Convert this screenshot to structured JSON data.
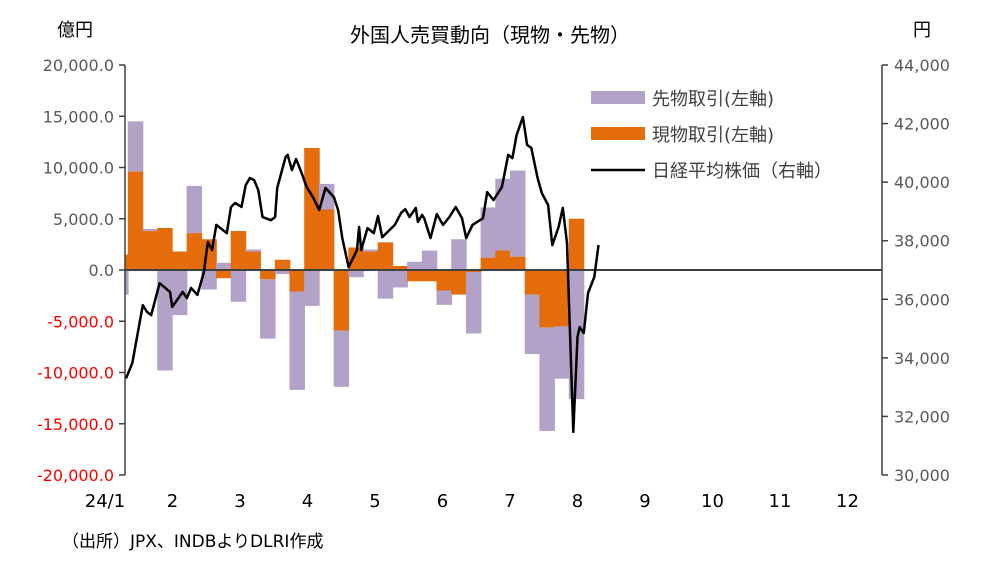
{
  "chart_data": {
    "type": "bar+line",
    "title": "外国人売買動向（現物・先物）",
    "left_axis_unit": "億円",
    "right_axis_unit": "円",
    "source_note": "（出所）JPX、INDBよりDLRI作成",
    "bars_stacked": true,
    "left_ylim": [
      -20000,
      20000
    ],
    "left_ticks": [
      "20,000.0",
      "15,000.0",
      "10,000.0",
      "5,000.0",
      "0.0",
      "-5,000.0",
      "-10,000.0",
      "-15,000.0",
      "-20,000.0"
    ],
    "left_tick_values": [
      20000,
      15000,
      10000,
      5000,
      0,
      -5000,
      -10000,
      -15000,
      -20000
    ],
    "negative_tick_color": "#FF0000",
    "right_ylim": [
      30000,
      44000
    ],
    "right_ticks": [
      "44,000",
      "42,000",
      "40,000",
      "38,000",
      "36,000",
      "34,000",
      "32,000",
      "30,000"
    ],
    "right_tick_values": [
      44000,
      42000,
      40000,
      38000,
      36000,
      34000,
      32000,
      30000
    ],
    "x_tick_labels": [
      "24/1",
      "2",
      "3",
      "4",
      "5",
      "6",
      "7",
      "8",
      "9",
      "10",
      "11",
      "12"
    ],
    "xlim": [
      "2024-01-01",
      "2024-12-31"
    ],
    "grid": false,
    "legend_position": "top-right",
    "legend": [
      {
        "label": "先物取引(左軸)",
        "color": "#B3A2C7",
        "kind": "bar"
      },
      {
        "label": "現物取引(左軸)",
        "color": "#E46C0A",
        "kind": "bar"
      },
      {
        "label": "日経平均株価（右軸）",
        "color": "#000000",
        "kind": "line"
      }
    ],
    "weeks": [
      "2024-01-05",
      "2024-01-12",
      "2024-01-19",
      "2024-01-26",
      "2024-02-02",
      "2024-02-09",
      "2024-02-16",
      "2024-02-23",
      "2024-03-01",
      "2024-03-08",
      "2024-03-15",
      "2024-03-22",
      "2024-03-29",
      "2024-04-05",
      "2024-04-12",
      "2024-04-19",
      "2024-04-26",
      "2024-05-03",
      "2024-05-10",
      "2024-05-17",
      "2024-05-24",
      "2024-05-31",
      "2024-06-07",
      "2024-06-14",
      "2024-06-21",
      "2024-06-28",
      "2024-07-05",
      "2024-07-12",
      "2024-07-19",
      "2024-07-26",
      "2024-08-02",
      "2024-08-09"
    ],
    "series": [
      {
        "name": "現物取引(左軸)",
        "axis": "left",
        "color": "#E46C0A",
        "values": [
          1500,
          9600,
          3800,
          4100,
          1800,
          3600,
          3000,
          -800,
          3800,
          1800,
          -900,
          1000,
          -2100,
          11900,
          5900,
          -5900,
          2200,
          1800,
          2700,
          400,
          -1100,
          -1100,
          -2000,
          -2400,
          -200,
          1200,
          1900,
          1300,
          -2400,
          -5600,
          -5500,
          5000
        ]
      },
      {
        "name": "先物取引(左軸)",
        "axis": "left",
        "color": "#B3A2C7",
        "values": [
          -2400,
          4900,
          200,
          -9800,
          -4400,
          4600,
          -1900,
          700,
          -3100,
          200,
          -5800,
          -400,
          -9600,
          -3500,
          2500,
          -5500,
          -700,
          200,
          -2800,
          -1700,
          800,
          1900,
          -1400,
          3000,
          -6000,
          4900,
          7000,
          8400,
          -5800,
          -10100,
          -5100,
          -12600
        ]
      },
      {
        "name": "日経平均株価（右軸）",
        "axis": "right",
        "color": "#000000",
        "points": [
          [
            "2024-01-04",
            33300
          ],
          [
            "2024-01-07",
            33820
          ],
          [
            "2024-01-12",
            35800
          ],
          [
            "2024-01-14",
            35570
          ],
          [
            "2024-01-16",
            35460
          ],
          [
            "2024-01-20",
            36550
          ],
          [
            "2024-01-25",
            36250
          ],
          [
            "2024-01-26",
            35740
          ],
          [
            "2024-01-31",
            36250
          ],
          [
            "2024-02-02",
            36040
          ],
          [
            "2024-02-04",
            36390
          ],
          [
            "2024-02-07",
            36150
          ],
          [
            "2024-02-10",
            36900
          ],
          [
            "2024-02-12",
            37960
          ],
          [
            "2024-02-14",
            37680
          ],
          [
            "2024-02-16",
            38540
          ],
          [
            "2024-02-21",
            38260
          ],
          [
            "2024-02-23",
            39150
          ],
          [
            "2024-02-25",
            39290
          ],
          [
            "2024-02-28",
            39150
          ],
          [
            "2024-03-01",
            39900
          ],
          [
            "2024-03-03",
            40140
          ],
          [
            "2024-03-05",
            40070
          ],
          [
            "2024-03-07",
            39730
          ],
          [
            "2024-03-09",
            38810
          ],
          [
            "2024-03-13",
            38700
          ],
          [
            "2024-03-15",
            38810
          ],
          [
            "2024-03-16",
            39800
          ],
          [
            "2024-03-20",
            40860
          ],
          [
            "2024-03-21",
            40930
          ],
          [
            "2024-03-23",
            40410
          ],
          [
            "2024-03-25",
            40790
          ],
          [
            "2024-03-28",
            40240
          ],
          [
            "2024-03-30",
            39830
          ],
          [
            "2024-04-02",
            39490
          ],
          [
            "2024-04-05",
            39050
          ],
          [
            "2024-04-08",
            39800
          ],
          [
            "2024-04-12",
            39490
          ],
          [
            "2024-04-14",
            39050
          ],
          [
            "2024-04-16",
            38090
          ],
          [
            "2024-04-19",
            37100
          ],
          [
            "2024-04-23",
            37680
          ],
          [
            "2024-04-24",
            38470
          ],
          [
            "2024-04-25",
            37680
          ],
          [
            "2024-04-28",
            38430
          ],
          [
            "2024-05-01",
            38260
          ],
          [
            "2024-05-03",
            38840
          ],
          [
            "2024-05-05",
            38120
          ],
          [
            "2024-05-07",
            38260
          ],
          [
            "2024-05-11",
            38540
          ],
          [
            "2024-05-14",
            38950
          ],
          [
            "2024-05-16",
            39080
          ],
          [
            "2024-05-18",
            38810
          ],
          [
            "2024-05-21",
            39120
          ],
          [
            "2024-05-22",
            38640
          ],
          [
            "2024-05-24",
            38880
          ],
          [
            "2024-05-25",
            38770
          ],
          [
            "2024-05-28",
            38090
          ],
          [
            "2024-05-31",
            38910
          ],
          [
            "2024-06-03",
            38540
          ],
          [
            "2024-06-06",
            38810
          ],
          [
            "2024-06-09",
            39150
          ],
          [
            "2024-06-12",
            38770
          ],
          [
            "2024-06-14",
            38090
          ],
          [
            "2024-06-17",
            38540
          ],
          [
            "2024-06-22",
            38770
          ],
          [
            "2024-06-24",
            39660
          ],
          [
            "2024-06-27",
            39390
          ],
          [
            "2024-07-01",
            39830
          ],
          [
            "2024-07-04",
            40930
          ],
          [
            "2024-07-06",
            40820
          ],
          [
            "2024-07-08",
            41610
          ],
          [
            "2024-07-11",
            42220
          ],
          [
            "2024-07-13",
            41270
          ],
          [
            "2024-07-15",
            41170
          ],
          [
            "2024-07-18",
            40140
          ],
          [
            "2024-07-20",
            39630
          ],
          [
            "2024-07-23",
            39220
          ],
          [
            "2024-07-25",
            37850
          ],
          [
            "2024-07-28",
            38470
          ],
          [
            "2024-07-30",
            39120
          ],
          [
            "2024-08-01",
            37920
          ],
          [
            "2024-08-04",
            31470
          ],
          [
            "2024-08-06",
            34710
          ],
          [
            "2024-08-07",
            35050
          ],
          [
            "2024-08-09",
            34850
          ],
          [
            "2024-08-11",
            36210
          ],
          [
            "2024-08-14",
            36760
          ],
          [
            "2024-08-16",
            37850
          ]
        ]
      }
    ]
  }
}
